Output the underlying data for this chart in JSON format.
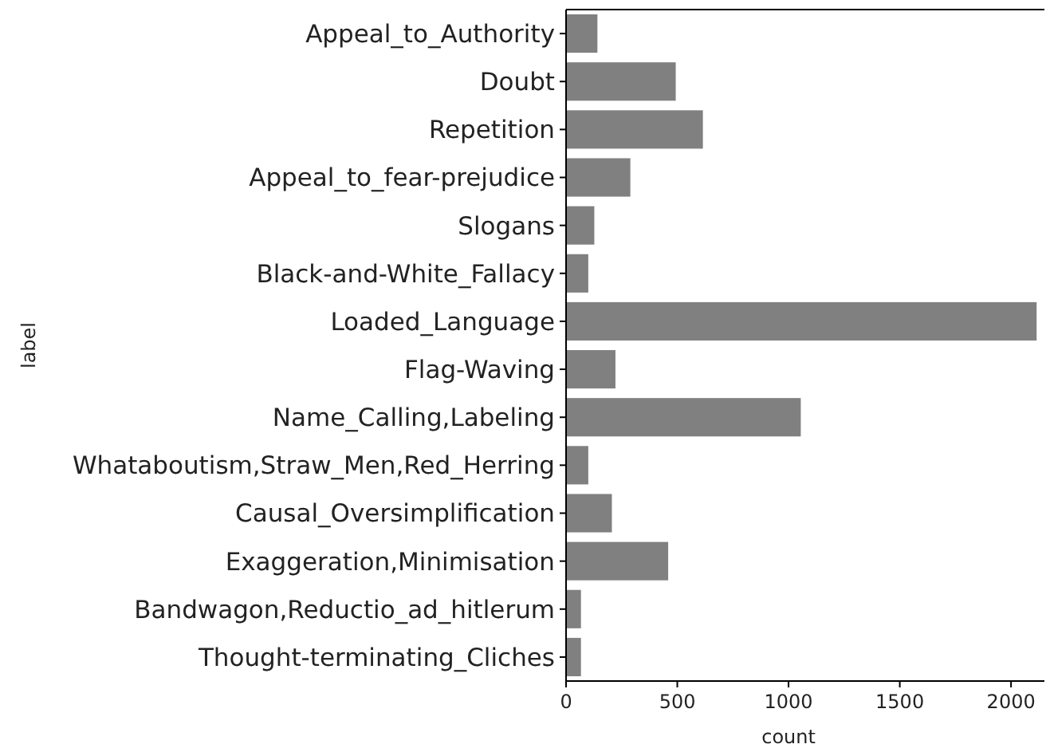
{
  "chart_data": {
    "type": "bar",
    "orientation": "horizontal",
    "xlabel": "count",
    "ylabel": "label",
    "categories": [
      "Appeal_to_Authority",
      "Doubt",
      "Repetition",
      "Appeal_to_fear-prejudice",
      "Slogans",
      "Black-and-White_Fallacy",
      "Loaded_Language",
      "Flag-Waving",
      "Name_Calling,Labeling",
      "Whataboutism,Straw_Men,Red_Herring",
      "Causal_Oversimplification",
      "Exaggeration,Minimisation",
      "Bandwagon,Reductio_ad_hitlerum",
      "Thought-terminating_Cliches"
    ],
    "values": [
      141,
      493,
      615,
      289,
      127,
      100,
      2115,
      222,
      1055,
      100,
      206,
      459,
      67,
      67
    ],
    "color": "#808080",
    "xlim": [
      0,
      2150
    ],
    "xticks": [
      0,
      500,
      1000,
      1500,
      2000
    ],
    "grid": false
  }
}
